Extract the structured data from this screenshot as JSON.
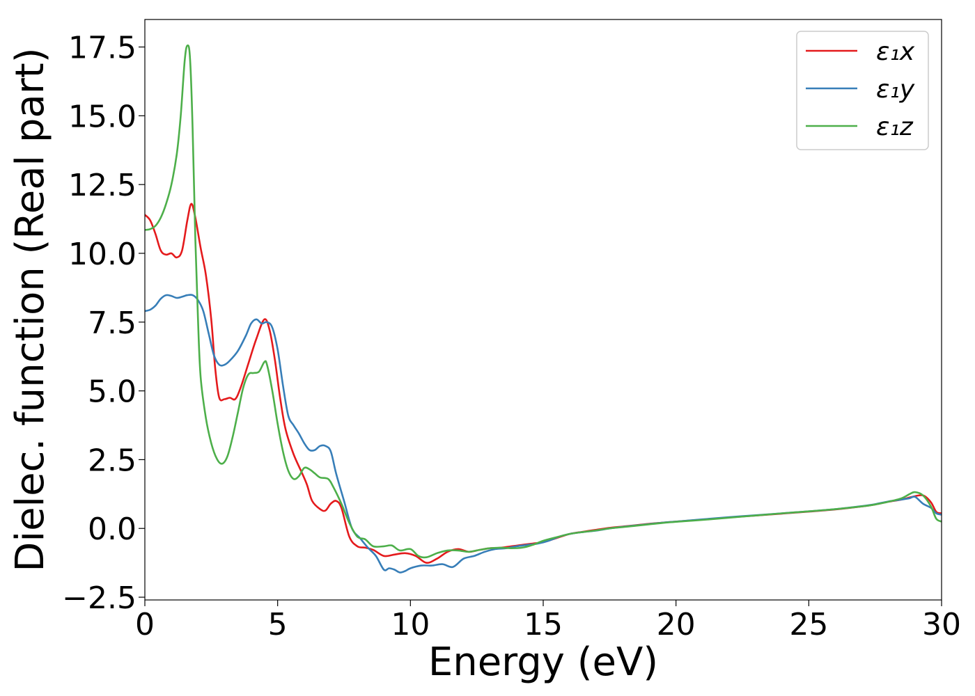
{
  "chart_data": {
    "type": "line",
    "title": "",
    "xlabel": "Energy (eV)",
    "ylabel": "Dielec. function (Real part)",
    "xlim": [
      0,
      30
    ],
    "ylim": [
      -2.6,
      18.5
    ],
    "xticks": [
      0,
      5,
      10,
      15,
      20,
      25,
      30
    ],
    "xtick_labels": [
      "0",
      "5",
      "10",
      "15",
      "20",
      "25",
      "30"
    ],
    "yticks": [
      -2.5,
      0,
      2.5,
      5,
      7.5,
      10,
      12.5,
      15,
      17.5
    ],
    "ytick_labels": [
      "−2.5",
      "0.0",
      "2.5",
      "5.0",
      "7.5",
      "10.0",
      "12.5",
      "15.0",
      "17.5"
    ],
    "grid": false,
    "legend_position": "top-right",
    "series": [
      {
        "name": "ε₁x",
        "color": "#e41a1c",
        "points": [
          [
            0,
            11.4
          ],
          [
            0.2,
            11.2
          ],
          [
            0.4,
            10.7
          ],
          [
            0.6,
            10.1
          ],
          [
            0.8,
            9.95
          ],
          [
            1.0,
            10.0
          ],
          [
            1.2,
            9.85
          ],
          [
            1.4,
            10.1
          ],
          [
            1.6,
            11.2
          ],
          [
            1.75,
            11.8
          ],
          [
            1.9,
            11.3
          ],
          [
            2.1,
            10.2
          ],
          [
            2.3,
            9.2
          ],
          [
            2.5,
            7.6
          ],
          [
            2.65,
            5.8
          ],
          [
            2.8,
            4.75
          ],
          [
            3.0,
            4.7
          ],
          [
            3.2,
            4.75
          ],
          [
            3.4,
            4.7
          ],
          [
            3.6,
            5.1
          ],
          [
            3.9,
            6.0
          ],
          [
            4.2,
            6.9
          ],
          [
            4.5,
            7.6
          ],
          [
            4.7,
            7.2
          ],
          [
            4.9,
            6.1
          ],
          [
            5.1,
            4.7
          ],
          [
            5.3,
            3.6
          ],
          [
            5.6,
            2.7
          ],
          [
            5.9,
            2.05
          ],
          [
            6.1,
            1.6
          ],
          [
            6.3,
            1.0
          ],
          [
            6.6,
            0.7
          ],
          [
            6.8,
            0.65
          ],
          [
            7.0,
            0.9
          ],
          [
            7.2,
            1.0
          ],
          [
            7.4,
            0.75
          ],
          [
            7.7,
            -0.3
          ],
          [
            8.0,
            -0.65
          ],
          [
            8.3,
            -0.7
          ],
          [
            8.6,
            -0.78
          ],
          [
            9.0,
            -1.0
          ],
          [
            9.4,
            -0.95
          ],
          [
            9.8,
            -0.9
          ],
          [
            10.2,
            -1.0
          ],
          [
            10.6,
            -1.25
          ],
          [
            11.0,
            -1.1
          ],
          [
            11.4,
            -0.85
          ],
          [
            11.8,
            -0.75
          ],
          [
            12.2,
            -0.85
          ],
          [
            12.6,
            -0.78
          ],
          [
            13.0,
            -0.72
          ],
          [
            13.4,
            -0.7
          ],
          [
            13.8,
            -0.65
          ],
          [
            14.2,
            -0.6
          ],
          [
            14.6,
            -0.55
          ],
          [
            15.0,
            -0.5
          ],
          [
            15.5,
            -0.35
          ],
          [
            16.0,
            -0.2
          ],
          [
            16.5,
            -0.12
          ],
          [
            17.0,
            -0.05
          ],
          [
            17.5,
            0.02
          ],
          [
            18.0,
            0.07
          ],
          [
            18.5,
            0.12
          ],
          [
            19.0,
            0.17
          ],
          [
            19.5,
            0.21
          ],
          [
            20.0,
            0.25
          ],
          [
            21.0,
            0.32
          ],
          [
            22.0,
            0.4
          ],
          [
            23.0,
            0.47
          ],
          [
            24.0,
            0.54
          ],
          [
            25.0,
            0.61
          ],
          [
            26.0,
            0.69
          ],
          [
            27.0,
            0.8
          ],
          [
            27.5,
            0.87
          ],
          [
            28.0,
            0.97
          ],
          [
            28.5,
            1.05
          ],
          [
            28.9,
            1.15
          ],
          [
            29.3,
            1.2
          ],
          [
            29.6,
            0.95
          ],
          [
            29.8,
            0.6
          ],
          [
            30.0,
            0.55
          ]
        ]
      },
      {
        "name": "ε₁y",
        "color": "#377eb8",
        "points": [
          [
            0,
            7.9
          ],
          [
            0.2,
            7.95
          ],
          [
            0.4,
            8.1
          ],
          [
            0.6,
            8.35
          ],
          [
            0.8,
            8.48
          ],
          [
            1.0,
            8.45
          ],
          [
            1.2,
            8.38
          ],
          [
            1.4,
            8.42
          ],
          [
            1.6,
            8.48
          ],
          [
            1.8,
            8.48
          ],
          [
            2.0,
            8.3
          ],
          [
            2.2,
            7.9
          ],
          [
            2.4,
            7.1
          ],
          [
            2.6,
            6.3
          ],
          [
            2.8,
            5.95
          ],
          [
            3.0,
            5.95
          ],
          [
            3.2,
            6.1
          ],
          [
            3.5,
            6.45
          ],
          [
            3.8,
            7.0
          ],
          [
            4.0,
            7.45
          ],
          [
            4.2,
            7.6
          ],
          [
            4.4,
            7.45
          ],
          [
            4.6,
            7.5
          ],
          [
            4.8,
            7.3
          ],
          [
            5.0,
            6.5
          ],
          [
            5.2,
            5.2
          ],
          [
            5.4,
            4.1
          ],
          [
            5.6,
            3.75
          ],
          [
            5.8,
            3.45
          ],
          [
            6.0,
            3.1
          ],
          [
            6.2,
            2.85
          ],
          [
            6.4,
            2.85
          ],
          [
            6.6,
            3.0
          ],
          [
            6.8,
            3.0
          ],
          [
            7.0,
            2.8
          ],
          [
            7.2,
            2.0
          ],
          [
            7.5,
            1.0
          ],
          [
            7.8,
            0.0
          ],
          [
            8.1,
            -0.35
          ],
          [
            8.4,
            -0.7
          ],
          [
            8.7,
            -1.0
          ],
          [
            9.0,
            -1.5
          ],
          [
            9.2,
            -1.45
          ],
          [
            9.4,
            -1.5
          ],
          [
            9.6,
            -1.6
          ],
          [
            9.8,
            -1.55
          ],
          [
            10.0,
            -1.45
          ],
          [
            10.4,
            -1.35
          ],
          [
            10.8,
            -1.35
          ],
          [
            11.2,
            -1.3
          ],
          [
            11.6,
            -1.4
          ],
          [
            12.0,
            -1.1
          ],
          [
            12.4,
            -1.0
          ],
          [
            12.8,
            -0.85
          ],
          [
            13.2,
            -0.75
          ],
          [
            13.6,
            -0.72
          ],
          [
            14.0,
            -0.65
          ],
          [
            14.4,
            -0.6
          ],
          [
            14.8,
            -0.55
          ],
          [
            15.2,
            -0.45
          ],
          [
            15.6,
            -0.3
          ],
          [
            16.0,
            -0.2
          ],
          [
            16.5,
            -0.13
          ],
          [
            17.0,
            -0.08
          ],
          [
            17.5,
            0.0
          ],
          [
            18.0,
            0.06
          ],
          [
            18.5,
            0.11
          ],
          [
            19.0,
            0.16
          ],
          [
            19.5,
            0.21
          ],
          [
            20.0,
            0.25
          ],
          [
            21.0,
            0.33
          ],
          [
            22.0,
            0.41
          ],
          [
            23.0,
            0.48
          ],
          [
            24.0,
            0.55
          ],
          [
            25.0,
            0.62
          ],
          [
            26.0,
            0.7
          ],
          [
            27.0,
            0.81
          ],
          [
            27.5,
            0.88
          ],
          [
            28.0,
            0.98
          ],
          [
            28.5,
            1.05
          ],
          [
            28.8,
            1.1
          ],
          [
            29.0,
            1.15
          ],
          [
            29.3,
            0.9
          ],
          [
            29.6,
            0.75
          ],
          [
            29.8,
            0.55
          ],
          [
            30.0,
            0.5
          ]
        ]
      },
      {
        "name": "ε₁z",
        "color": "#4daf4a",
        "points": [
          [
            0,
            10.85
          ],
          [
            0.2,
            10.88
          ],
          [
            0.4,
            11.0
          ],
          [
            0.6,
            11.3
          ],
          [
            0.8,
            11.8
          ],
          [
            1.0,
            12.5
          ],
          [
            1.2,
            13.6
          ],
          [
            1.35,
            15.0
          ],
          [
            1.5,
            17.0
          ],
          [
            1.6,
            17.55
          ],
          [
            1.7,
            17.1
          ],
          [
            1.8,
            14.5
          ],
          [
            1.9,
            10.5
          ],
          [
            2.0,
            7.6
          ],
          [
            2.1,
            5.5
          ],
          [
            2.3,
            4.0
          ],
          [
            2.5,
            3.1
          ],
          [
            2.7,
            2.55
          ],
          [
            2.9,
            2.35
          ],
          [
            3.1,
            2.6
          ],
          [
            3.3,
            3.3
          ],
          [
            3.5,
            4.2
          ],
          [
            3.7,
            5.1
          ],
          [
            3.9,
            5.6
          ],
          [
            4.1,
            5.65
          ],
          [
            4.3,
            5.7
          ],
          [
            4.5,
            6.05
          ],
          [
            4.6,
            5.95
          ],
          [
            4.8,
            5.0
          ],
          [
            5.0,
            3.8
          ],
          [
            5.2,
            2.8
          ],
          [
            5.4,
            2.1
          ],
          [
            5.6,
            1.8
          ],
          [
            5.8,
            1.9
          ],
          [
            6.0,
            2.2
          ],
          [
            6.2,
            2.15
          ],
          [
            6.4,
            2.0
          ],
          [
            6.6,
            1.85
          ],
          [
            6.9,
            1.8
          ],
          [
            7.1,
            1.5
          ],
          [
            7.4,
            0.9
          ],
          [
            7.7,
            0.2
          ],
          [
            8.0,
            -0.3
          ],
          [
            8.3,
            -0.4
          ],
          [
            8.6,
            -0.65
          ],
          [
            9.0,
            -0.65
          ],
          [
            9.3,
            -0.62
          ],
          [
            9.6,
            -0.8
          ],
          [
            10.0,
            -0.75
          ],
          [
            10.3,
            -1.0
          ],
          [
            10.6,
            -1.05
          ],
          [
            11.0,
            -0.9
          ],
          [
            11.4,
            -0.8
          ],
          [
            11.8,
            -0.8
          ],
          [
            12.2,
            -0.85
          ],
          [
            12.6,
            -0.78
          ],
          [
            13.0,
            -0.72
          ],
          [
            13.4,
            -0.7
          ],
          [
            13.8,
            -0.72
          ],
          [
            14.2,
            -0.7
          ],
          [
            14.6,
            -0.6
          ],
          [
            15.0,
            -0.45
          ],
          [
            15.5,
            -0.32
          ],
          [
            16.0,
            -0.2
          ],
          [
            16.5,
            -0.13
          ],
          [
            17.0,
            -0.07
          ],
          [
            17.5,
            0.0
          ],
          [
            18.0,
            0.05
          ],
          [
            18.5,
            0.1
          ],
          [
            19.0,
            0.15
          ],
          [
            19.5,
            0.2
          ],
          [
            20.0,
            0.24
          ],
          [
            21.0,
            0.31
          ],
          [
            22.0,
            0.39
          ],
          [
            23.0,
            0.47
          ],
          [
            24.0,
            0.55
          ],
          [
            25.0,
            0.62
          ],
          [
            26.0,
            0.7
          ],
          [
            27.0,
            0.8
          ],
          [
            27.5,
            0.87
          ],
          [
            28.0,
            0.97
          ],
          [
            28.5,
            1.1
          ],
          [
            28.8,
            1.25
          ],
          [
            29.0,
            1.32
          ],
          [
            29.3,
            1.2
          ],
          [
            29.6,
            0.8
          ],
          [
            29.8,
            0.35
          ],
          [
            30.0,
            0.25
          ]
        ]
      }
    ]
  }
}
